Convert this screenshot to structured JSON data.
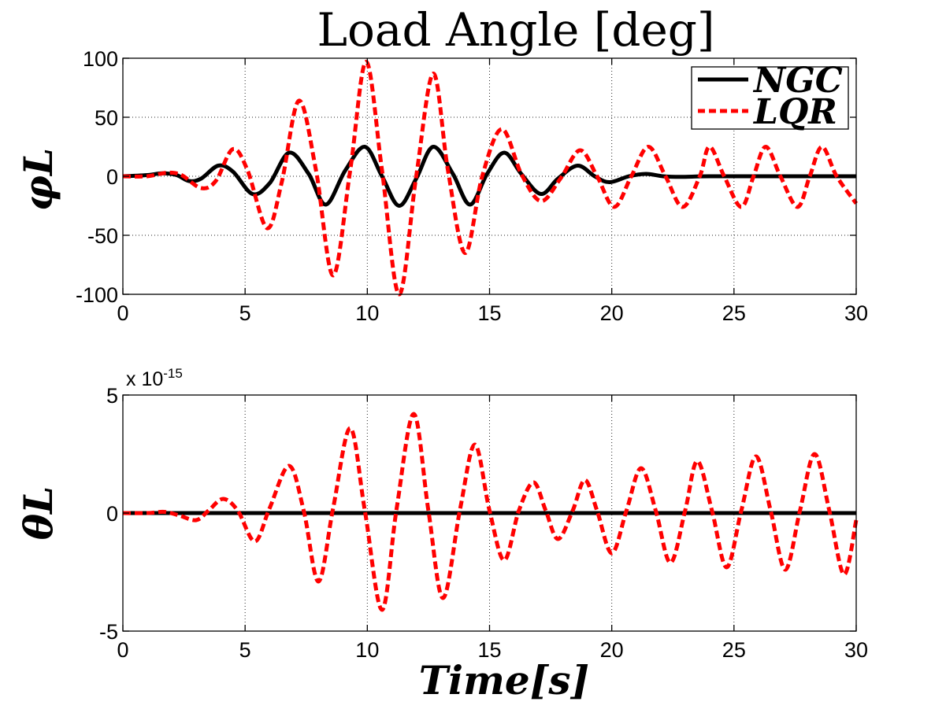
{
  "figure_title": "Load Angle [deg]",
  "colors": {
    "ngc": "#000000",
    "lqr": "#ff0000",
    "background": "#ffffff"
  },
  "legend": {
    "placement": "top-right of upper plot",
    "entries": [
      "NGC",
      "LQR"
    ]
  },
  "xlabel": "Time[s]",
  "chart_data": [
    {
      "type": "line",
      "ylabel": "φL",
      "xlim": [
        0,
        30
      ],
      "ylim": [
        -100,
        100
      ],
      "xticks": [
        0,
        5,
        10,
        15,
        20,
        25,
        30
      ],
      "yticks": [
        -100,
        -50,
        0,
        50,
        100
      ],
      "grid": true,
      "series": [
        {
          "name": "NGC",
          "style": "solid",
          "points": [
            [
              0,
              0
            ],
            [
              1,
              1
            ],
            [
              1.6,
              2.5
            ],
            [
              2.2,
              1
            ],
            [
              2.7,
              -4
            ],
            [
              3.2,
              -2
            ],
            [
              3.9,
              9
            ],
            [
              4.5,
              4
            ],
            [
              5.3,
              -15
            ],
            [
              6,
              -6
            ],
            [
              6.8,
              20
            ],
            [
              7.6,
              2
            ],
            [
              8.3,
              -24
            ],
            [
              9.1,
              5
            ],
            [
              9.9,
              25
            ],
            [
              10.6,
              0
            ],
            [
              11.3,
              -25
            ],
            [
              12,
              -2
            ],
            [
              12.7,
              25
            ],
            [
              13.5,
              2
            ],
            [
              14.2,
              -24
            ],
            [
              14.9,
              2
            ],
            [
              15.6,
              20
            ],
            [
              16.3,
              2
            ],
            [
              17.1,
              -15
            ],
            [
              17.8,
              -2
            ],
            [
              18.6,
              9
            ],
            [
              19.3,
              0
            ],
            [
              19.9,
              -5
            ],
            [
              20.7,
              0
            ],
            [
              21.4,
              2
            ],
            [
              22.1,
              0
            ],
            [
              22.8,
              -0.5
            ],
            [
              24,
              0
            ],
            [
              26,
              0
            ],
            [
              28,
              0
            ],
            [
              30,
              0
            ]
          ]
        },
        {
          "name": "LQR",
          "style": "dashed",
          "points": [
            [
              0,
              0
            ],
            [
              1,
              0
            ],
            [
              1.8,
              3
            ],
            [
              2.4,
              1
            ],
            [
              3.2,
              -10
            ],
            [
              3.8,
              -4
            ],
            [
              4.5,
              23
            ],
            [
              5.1,
              5
            ],
            [
              5.9,
              -44
            ],
            [
              6.5,
              -5
            ],
            [
              7.2,
              64
            ],
            [
              7.9,
              5
            ],
            [
              8.6,
              -84
            ],
            [
              9.3,
              5
            ],
            [
              9.95,
              97
            ],
            [
              10.6,
              5
            ],
            [
              11.3,
              -100
            ],
            [
              12,
              0
            ],
            [
              12.7,
              87
            ],
            [
              13.3,
              5
            ],
            [
              14.0,
              -65
            ],
            [
              14.7,
              0
            ],
            [
              15.5,
              40
            ],
            [
              16.3,
              2
            ],
            [
              17.1,
              -21
            ],
            [
              17.9,
              -2
            ],
            [
              18.7,
              22
            ],
            [
              19.4,
              0
            ],
            [
              20.1,
              -26
            ],
            [
              20.8,
              0
            ],
            [
              21.5,
              25
            ],
            [
              22.2,
              0
            ],
            [
              22.9,
              -26
            ],
            [
              23.6,
              0
            ],
            [
              24.0,
              25
            ],
            [
              24.6,
              0
            ],
            [
              25.3,
              -26
            ],
            [
              25.8,
              0
            ],
            [
              26.3,
              25
            ],
            [
              26.9,
              0
            ],
            [
              27.6,
              -26
            ],
            [
              28.1,
              0
            ],
            [
              28.6,
              25
            ],
            [
              29.2,
              0
            ],
            [
              30,
              -23
            ]
          ]
        }
      ]
    },
    {
      "type": "line",
      "ylabel": "θL",
      "xlim": [
        0,
        30
      ],
      "ylim": [
        -5,
        5
      ],
      "y_exponent": "x 10",
      "y_exponent_power": "-15",
      "xticks": [
        0,
        5,
        10,
        15,
        20,
        25,
        30
      ],
      "yticks": [
        -5,
        0,
        5
      ],
      "grid": true,
      "series": [
        {
          "name": "NGC",
          "style": "solid",
          "points": [
            [
              0,
              0
            ],
            [
              30,
              0
            ]
          ]
        },
        {
          "name": "LQR",
          "style": "dashed",
          "points": [
            [
              0,
              0
            ],
            [
              1,
              0
            ],
            [
              1.7,
              0.05
            ],
            [
              2.3,
              -0.1
            ],
            [
              3,
              -0.3
            ],
            [
              3.5,
              0.1
            ],
            [
              4.1,
              0.6
            ],
            [
              4.7,
              0.1
            ],
            [
              5.4,
              -1.2
            ],
            [
              6,
              0.2
            ],
            [
              6.8,
              2.0
            ],
            [
              7.4,
              0.1
            ],
            [
              8.0,
              -2.9
            ],
            [
              8.6,
              0.2
            ],
            [
              9.3,
              3.6
            ],
            [
              9.9,
              0.1
            ],
            [
              10.6,
              -4.1
            ],
            [
              11.2,
              0.2
            ],
            [
              11.9,
              4.2
            ],
            [
              12.5,
              0.1
            ],
            [
              13.1,
              -3.6
            ],
            [
              13.8,
              0.2
            ],
            [
              14.4,
              2.9
            ],
            [
              15.0,
              0.1
            ],
            [
              15.6,
              -2.0
            ],
            [
              16.2,
              0.1
            ],
            [
              16.8,
              1.3
            ],
            [
              17.3,
              0.1
            ],
            [
              17.8,
              -1.1
            ],
            [
              18.4,
              0.1
            ],
            [
              18.9,
              1.4
            ],
            [
              19.4,
              0.1
            ],
            [
              20.0,
              -1.7
            ],
            [
              20.6,
              0.1
            ],
            [
              21.2,
              1.9
            ],
            [
              21.8,
              0.1
            ],
            [
              22.4,
              -2.1
            ],
            [
              23.0,
              0.1
            ],
            [
              23.5,
              2.2
            ],
            [
              24.1,
              0.1
            ],
            [
              24.7,
              -2.3
            ],
            [
              25.3,
              0.1
            ],
            [
              25.9,
              2.4
            ],
            [
              26.5,
              0.1
            ],
            [
              27.1,
              -2.4
            ],
            [
              27.7,
              0.1
            ],
            [
              28.3,
              2.5
            ],
            [
              28.9,
              0.1
            ],
            [
              29.5,
              -2.6
            ],
            [
              30,
              -0.3
            ]
          ]
        }
      ]
    }
  ]
}
